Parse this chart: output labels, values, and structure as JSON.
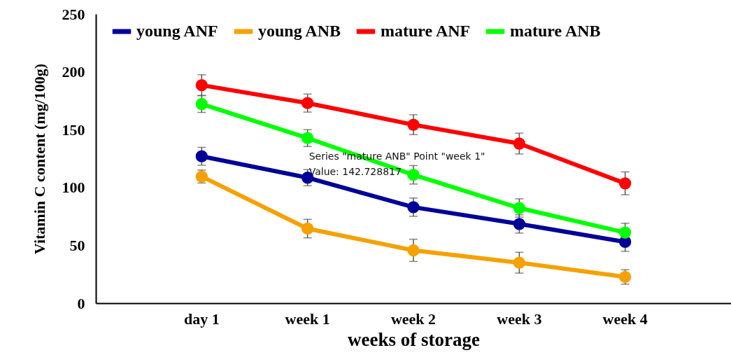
{
  "chart_data": {
    "type": "line",
    "xlabel": "weeks of storage",
    "ylabel": "Vitamin C content (mg/100g)",
    "categories": [
      "day 1",
      "week 1",
      "week 2",
      "week 3",
      "week 4"
    ],
    "series": [
      {
        "name": "young ANF",
        "color": "#000099",
        "values": [
          127,
          108.5,
          83,
          68.5,
          53
        ],
        "errors": [
          7.7,
          7,
          7.9,
          7.9,
          8.2
        ]
      },
      {
        "name": "young ANB",
        "color": "#f5a100",
        "values": [
          109.5,
          64.5,
          45.7,
          35,
          22.7
        ],
        "errors": [
          5.6,
          8,
          9.6,
          9,
          6.2
        ]
      },
      {
        "name": "mature ANF",
        "color": "#ff0000",
        "values": [
          188.5,
          173,
          154.3,
          138,
          103.6
        ],
        "errors": [
          9,
          7.8,
          8.6,
          9,
          9.9
        ]
      },
      {
        "name": "mature ANB",
        "color": "#00ff00",
        "values": [
          172.2,
          142.728817,
          111,
          82.3,
          61.1
        ],
        "errors": [
          7.3,
          7.3,
          8,
          7.9,
          8
        ]
      }
    ],
    "ylim": [
      0,
      250
    ],
    "yticks": [
      0,
      50,
      100,
      150,
      200,
      250
    ],
    "grid": false,
    "legend": "top",
    "marker": "circle",
    "line_style": "solid",
    "annotations": [
      {
        "text": "Series \"mature ANB\" Point \"week 1\"\nValue: 142.728817",
        "x": "week 1",
        "y": 142.728817
      }
    ]
  }
}
